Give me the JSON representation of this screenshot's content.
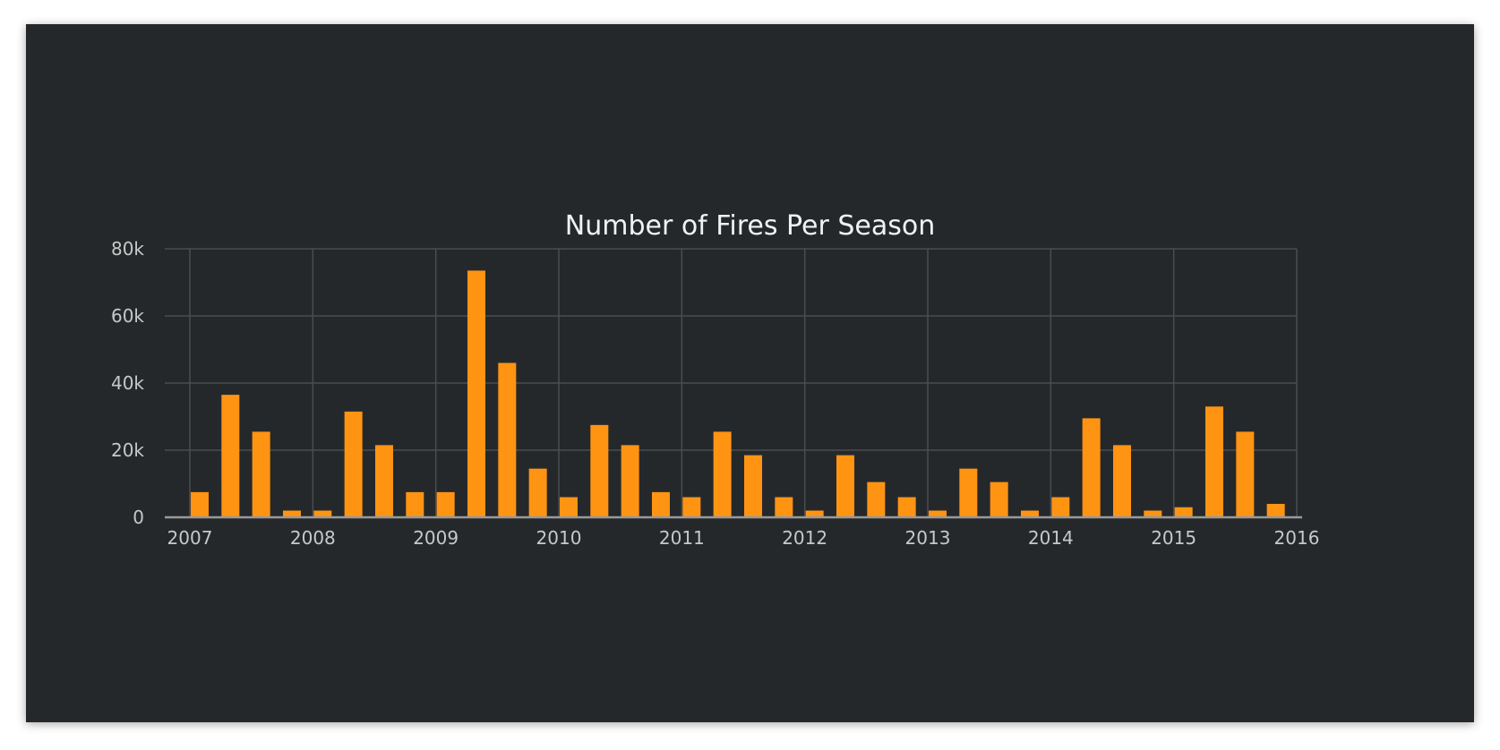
{
  "chart_data": {
    "type": "bar",
    "title": "Number of Fires Per Season",
    "xlabel": "",
    "ylabel": "",
    "x_range": [
      2007.0,
      2016.0
    ],
    "ylim": [
      0,
      80000
    ],
    "grid": true,
    "legend": "none",
    "y_ticks": [
      {
        "value": 0,
        "label": "0"
      },
      {
        "value": 20000,
        "label": "20k"
      },
      {
        "value": 40000,
        "label": "40k"
      },
      {
        "value": 60000,
        "label": "60k"
      },
      {
        "value": 80000,
        "label": "80k"
      }
    ],
    "x_ticks": [
      {
        "value": 2007,
        "label": "2007"
      },
      {
        "value": 2008,
        "label": "2008"
      },
      {
        "value": 2009,
        "label": "2009"
      },
      {
        "value": 2010,
        "label": "2010"
      },
      {
        "value": 2011,
        "label": "2011"
      },
      {
        "value": 2012,
        "label": "2012"
      },
      {
        "value": 2013,
        "label": "2013"
      },
      {
        "value": 2014,
        "label": "2014"
      },
      {
        "value": 2015,
        "label": "2015"
      },
      {
        "value": 2016,
        "label": "2016"
      }
    ],
    "series": [
      {
        "color": "#ff9413",
        "x": [
          2007.08,
          2007.33,
          2007.58,
          2007.83,
          2008.08,
          2008.33,
          2008.58,
          2008.83,
          2009.08,
          2009.33,
          2009.58,
          2009.83,
          2010.08,
          2010.33,
          2010.58,
          2010.83,
          2011.08,
          2011.33,
          2011.58,
          2011.83,
          2012.08,
          2012.33,
          2012.58,
          2012.83,
          2013.08,
          2013.33,
          2013.58,
          2013.83,
          2014.08,
          2014.33,
          2014.58,
          2014.83,
          2015.08,
          2015.33,
          2015.58,
          2015.83
        ],
        "values": [
          7500,
          36500,
          25500,
          2000,
          2000,
          31500,
          21500,
          7500,
          7500,
          73500,
          46000,
          14500,
          6000,
          27500,
          21500,
          7500,
          6000,
          25500,
          18500,
          6000,
          2000,
          18500,
          10500,
          6000,
          2000,
          14500,
          10500,
          2000,
          6000,
          29500,
          21500,
          2000,
          3000,
          33000,
          25500,
          4000
        ]
      }
    ]
  },
  "colors": {
    "background": "#25282b",
    "bar": "#ff9413",
    "grid": "#4a4d50",
    "axis": "#9a9a9a"
  }
}
